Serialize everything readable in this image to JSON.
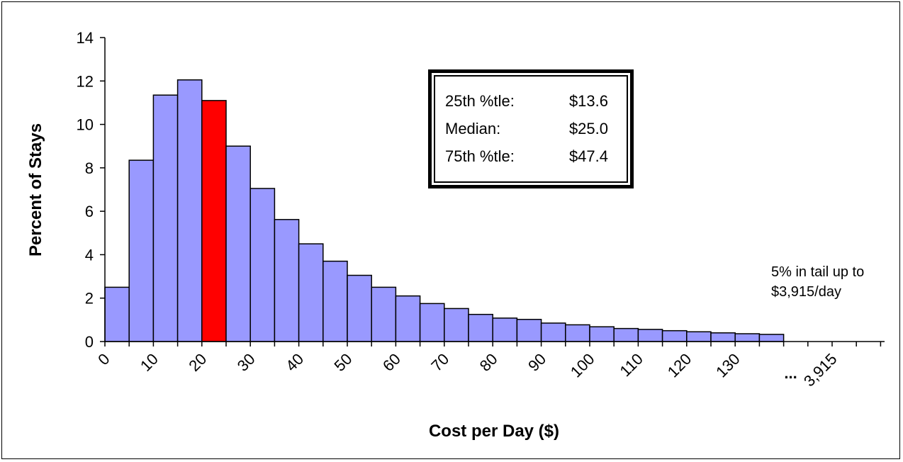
{
  "chart_data": {
    "type": "bar",
    "title": "",
    "xlabel": "Cost per Day ($)",
    "ylabel": "Percent of Stays",
    "ylim": [
      0,
      14
    ],
    "yticks": [
      "0",
      "2",
      "4",
      "6",
      "8",
      "10",
      "12",
      "14"
    ],
    "xtick_labels": [
      "0",
      "10",
      "20",
      "30",
      "40",
      "50",
      "60",
      "70",
      "80",
      "90",
      "100",
      "110",
      "120",
      "130",
      "...",
      "3,915"
    ],
    "bin_width": 5,
    "bins_start": [
      0,
      5,
      10,
      15,
      20,
      25,
      30,
      35,
      40,
      45,
      50,
      55,
      60,
      65,
      70,
      75,
      80,
      85,
      90,
      95,
      100,
      105,
      110,
      115,
      120,
      125,
      130,
      135
    ],
    "values": [
      2.5,
      8.35,
      11.35,
      12.05,
      11.1,
      9.0,
      7.05,
      5.62,
      4.5,
      3.7,
      3.05,
      2.5,
      2.1,
      1.75,
      1.52,
      1.25,
      1.08,
      1.02,
      0.85,
      0.77,
      0.68,
      0.6,
      0.56,
      0.5,
      0.45,
      0.4,
      0.36,
      0.33
    ],
    "highlight_index": 4,
    "colors": {
      "bar": "#9999FF",
      "highlight": "#FF0000",
      "edge": "#000000"
    },
    "grid": false,
    "stats_box": {
      "rows": [
        {
          "label": "25th %tle:",
          "value": "$13.6"
        },
        {
          "label": "Median:",
          "value": "$25.0"
        },
        {
          "label": "75th %tle:",
          "value": "$47.4"
        }
      ]
    },
    "tail_note": [
      "5% in tail up to",
      "$3,915/day"
    ]
  }
}
